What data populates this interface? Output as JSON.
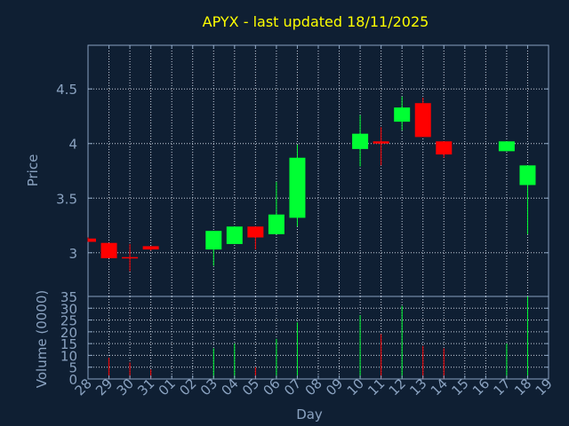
{
  "chart_data": {
    "type": "candlestick",
    "title": "APYX - last updated 18/11/2025",
    "xlabel": "Day",
    "price_axis": {
      "ylabel": "Price",
      "ylim": [
        2.6,
        4.9
      ],
      "ticks": [
        3,
        3.5,
        4,
        4.5
      ],
      "tick_labels": [
        "3",
        "3.5",
        "4",
        "4.5"
      ]
    },
    "volume_axis": {
      "ylabel": "Volume (0000)",
      "ylim": [
        0,
        35
      ],
      "ticks": [
        0,
        5,
        10,
        15,
        20,
        25,
        30,
        35
      ],
      "tick_labels": [
        "0",
        "5",
        "10",
        "15",
        "20",
        "25",
        "30",
        "35"
      ]
    },
    "x_tick_labels": [
      "28",
      "29",
      "30",
      "31",
      "01",
      "02",
      "03",
      "04",
      "05",
      "06",
      "07",
      "08",
      "09",
      "10",
      "11",
      "12",
      "13",
      "14",
      "15",
      "16",
      "17",
      "18",
      "19"
    ],
    "grid": true,
    "colors": {
      "background": "#0f1f33",
      "axis": "#8aa2c0",
      "grid": "#c8d2e0",
      "title": "#ffff00",
      "up": "#00ff33",
      "down": "#ff0000"
    },
    "candles": [
      {
        "day": "28",
        "open": 3.13,
        "close": 3.1,
        "high": 3.14,
        "low": 3.1,
        "volume": 0
      },
      {
        "day": "29",
        "open": 3.09,
        "close": 2.95,
        "high": 3.09,
        "low": 2.95,
        "volume": 9
      },
      {
        "day": "30",
        "open": 2.96,
        "close": 2.95,
        "high": 3.08,
        "low": 2.83,
        "volume": 7
      },
      {
        "day": "31",
        "open": 3.06,
        "close": 3.03,
        "high": 3.06,
        "low": 3.02,
        "volume": 4
      },
      {
        "day": "03",
        "open": 3.03,
        "close": 3.2,
        "high": 3.2,
        "low": 2.88,
        "volume": 13
      },
      {
        "day": "04",
        "open": 3.08,
        "close": 3.24,
        "high": 3.24,
        "low": 3.08,
        "volume": 15
      },
      {
        "day": "05",
        "open": 3.24,
        "close": 3.14,
        "high": 3.24,
        "low": 3.03,
        "volume": 5
      },
      {
        "day": "06",
        "open": 3.17,
        "close": 3.35,
        "high": 3.65,
        "low": 3.17,
        "volume": 17
      },
      {
        "day": "07",
        "open": 3.32,
        "close": 3.87,
        "high": 3.99,
        "low": 3.24,
        "volume": 24
      },
      {
        "day": "10",
        "open": 3.95,
        "close": 4.09,
        "high": 4.26,
        "low": 3.79,
        "volume": 27
      },
      {
        "day": "11",
        "open": 4.02,
        "close": 4.0,
        "high": 4.15,
        "low": 3.8,
        "volume": 19
      },
      {
        "day": "12",
        "open": 4.2,
        "close": 4.33,
        "high": 4.43,
        "low": 4.12,
        "volume": 31
      },
      {
        "day": "13",
        "open": 4.37,
        "close": 4.06,
        "high": 4.42,
        "low": 4.06,
        "volume": 14
      },
      {
        "day": "14",
        "open": 4.02,
        "close": 3.9,
        "high": 4.02,
        "low": 3.87,
        "volume": 13
      },
      {
        "day": "17",
        "open": 3.93,
        "close": 4.02,
        "high": 4.02,
        "low": 3.93,
        "volume": 15
      },
      {
        "day": "18",
        "open": 3.62,
        "close": 3.8,
        "high": 3.8,
        "low": 3.17,
        "volume": 35
      }
    ]
  }
}
